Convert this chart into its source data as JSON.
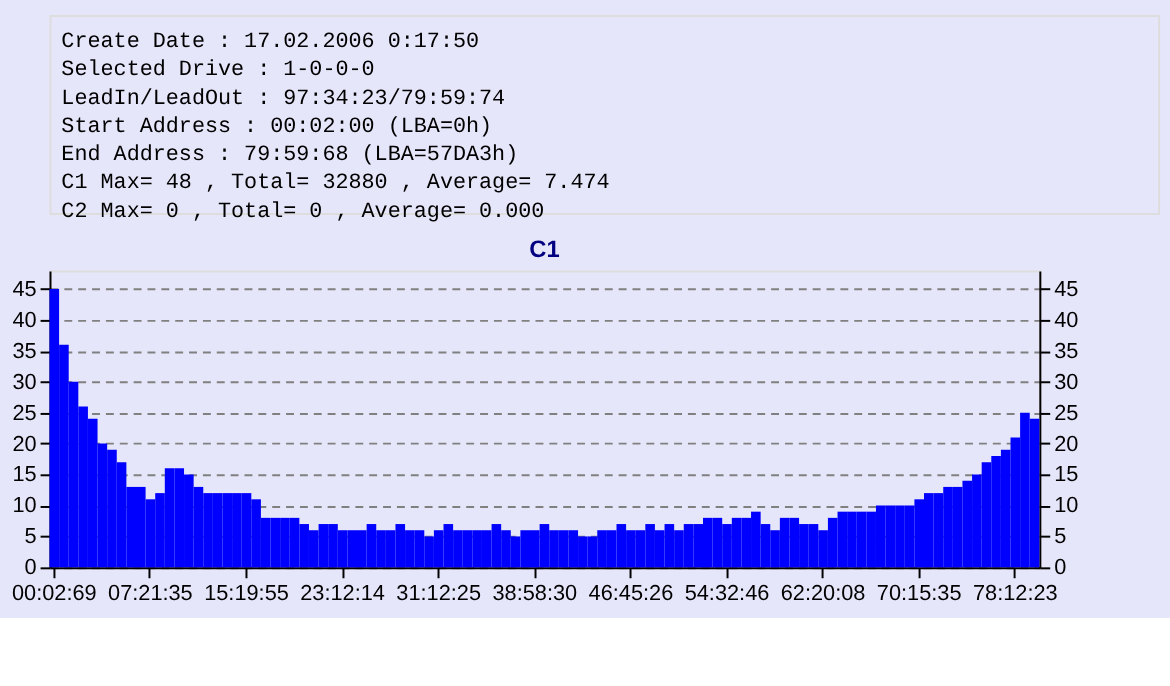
{
  "chart_data": {
    "type": "bar",
    "title": "C1",
    "annotations": [
      "Create Date    : 17.02.2006 0:17:50",
      "Selected Drive : 1-0-0-0",
      "LeadIn/LeadOut : 97:34:23/79:59:74",
      "Start Address  : 00:02:00 (LBA=0h)",
      "End Address    : 79:59:68 (LBA=57DA3h)",
      "C1 Max= 48 , Total= 32880 , Average= 7.474",
      "C2 Max= 0 , Total= 0 , Average= 0.000"
    ],
    "categories": [
      "00:02:69",
      null,
      null,
      null,
      null,
      null,
      null,
      null,
      null,
      null,
      "07:21:35",
      null,
      null,
      null,
      null,
      null,
      null,
      null,
      null,
      null,
      "15:19:55",
      null,
      null,
      null,
      null,
      null,
      null,
      null,
      null,
      null,
      "23:12:14",
      null,
      null,
      null,
      null,
      null,
      null,
      null,
      null,
      null,
      "31:12:25",
      null,
      null,
      null,
      null,
      null,
      null,
      null,
      null,
      null,
      "38:58:30",
      null,
      null,
      null,
      null,
      null,
      null,
      null,
      null,
      null,
      "46:45:26",
      null,
      null,
      null,
      null,
      null,
      null,
      null,
      null,
      null,
      "54:32:46",
      null,
      null,
      null,
      null,
      null,
      null,
      null,
      null,
      null,
      "62:20:08",
      null,
      null,
      null,
      null,
      null,
      null,
      null,
      null,
      null,
      "70:15:35",
      null,
      null,
      null,
      null,
      null,
      null,
      null,
      null,
      null,
      "78:12:23",
      null,
      null
    ],
    "series": [
      {
        "color": "#0000ff",
        "values": [
          45,
          36,
          30,
          26,
          24,
          20,
          19,
          17,
          13,
          13,
          11,
          12,
          16,
          16,
          15,
          13,
          12,
          12,
          12,
          12,
          12,
          11,
          8,
          8,
          8,
          8,
          7,
          6,
          7,
          7,
          6,
          6,
          6,
          7,
          6,
          6,
          7,
          6,
          6,
          5,
          6,
          7,
          6,
          6,
          6,
          6,
          7,
          6,
          5,
          6,
          6,
          7,
          6,
          6,
          6,
          5,
          5,
          6,
          6,
          7,
          6,
          6,
          7,
          6,
          7,
          6,
          7,
          7,
          8,
          8,
          7,
          8,
          8,
          9,
          7,
          6,
          8,
          8,
          7,
          7,
          6,
          8,
          9,
          9,
          9,
          9,
          10,
          10,
          10,
          10,
          11,
          12,
          12,
          13,
          13,
          14,
          15,
          17,
          18,
          19,
          21,
          25,
          24
        ]
      }
    ],
    "ylim": [
      0,
      48
    ],
    "yticks": [
      0,
      5,
      10,
      15,
      20,
      25,
      30,
      35,
      40,
      45
    ],
    "y2lim": [
      0,
      48
    ],
    "y2ticks": [
      0,
      5,
      10,
      15,
      20,
      25,
      30,
      35,
      40,
      45
    ],
    "grid": "y"
  }
}
